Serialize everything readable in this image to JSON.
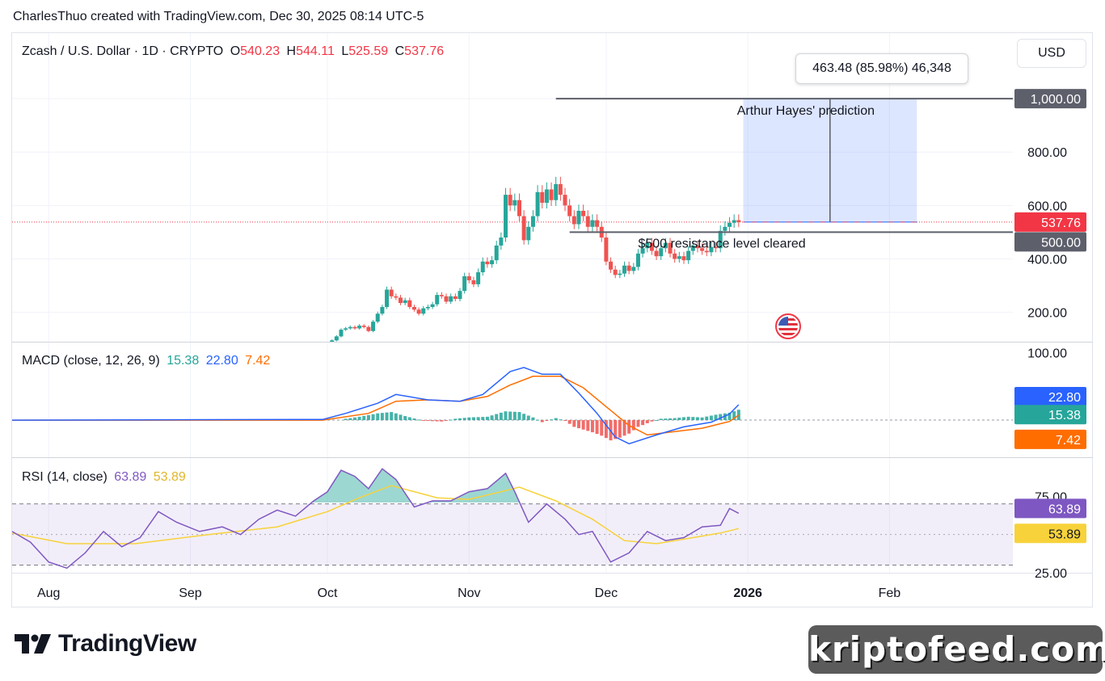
{
  "caption": "CharlesThuo created with TradingView.com, Dec 30, 2025 08:14 UTC-5",
  "symbol": {
    "title": "Zcash / U.S. Dollar · 1D · CRYPTO",
    "open_label": "O",
    "open": "540.23",
    "high_label": "H",
    "high": "544.11",
    "low_label": "L",
    "low": "525.59",
    "close_label": "C",
    "close": "537.76"
  },
  "currency_button": "USD",
  "macd_legend": {
    "title": "MACD (close, 12, 26, 9)",
    "histogram": "15.38",
    "macd": "22.80",
    "signal": "7.42"
  },
  "rsi_legend": {
    "title": "RSI (14, close)",
    "rsi": "63.89",
    "ma": "53.89"
  },
  "annotations": {
    "measure": "463.48 (85.98%) 46,348",
    "prediction": "Arthur Hayes' prediction",
    "resistance": "$500 resistance level cleared"
  },
  "branding": {
    "logo_text": "TradingView",
    "watermark": "kriptofeed.com"
  },
  "colors": {
    "up": "#26a69a",
    "down": "#ef5350",
    "macd_line": "#2962ff",
    "signal_line": "#ff6d00",
    "rsi_line": "#7e57c2",
    "rsi_ma": "#f7d23a",
    "price_tag": "#f23645",
    "level_tag": "#5d606b"
  },
  "chart_data": [
    {
      "type": "candlestick",
      "title": "Zcash / U.S. Dollar · 1D · CRYPTO",
      "ylim": [
        90,
        1100
      ],
      "yticks": [
        200,
        400,
        600,
        800
      ],
      "x_ticks": [
        "Aug",
        "Sep",
        "Oct",
        "Nov",
        "Dec",
        "2026",
        "Feb"
      ],
      "x_tick_dates": [
        "2025-08-01",
        "2025-09-01",
        "2025-10-01",
        "2025-11-01",
        "2025-12-01",
        "2026-01-01",
        "2026-02-01"
      ],
      "date_range": [
        "2025-07-24",
        "2026-02-28"
      ],
      "last_price": 537.76,
      "last_price_label": "537.76",
      "levels": [
        {
          "value": 1000,
          "label": "1,000.00",
          "from": "2025-11-20",
          "to": "2026-02-28"
        },
        {
          "value": 500,
          "label": "500.00",
          "from": "2025-11-23",
          "to": "2026-02-28"
        }
      ],
      "price_range_measure": {
        "from": 537.76,
        "to": 1000,
        "start": "2025-12-31",
        "end": "2026-02-07",
        "label": "463.48 (85.98%) 46,348"
      },
      "closes": [
        [
          "2025-10-01",
          80
        ],
        [
          "2025-10-02",
          95
        ],
        [
          "2025-10-03",
          110
        ],
        [
          "2025-10-04",
          135
        ],
        [
          "2025-10-05",
          140
        ],
        [
          "2025-10-06",
          145
        ],
        [
          "2025-10-07",
          140
        ],
        [
          "2025-10-08",
          150
        ],
        [
          "2025-10-09",
          145
        ],
        [
          "2025-10-10",
          130
        ],
        [
          "2025-10-11",
          165
        ],
        [
          "2025-10-12",
          195
        ],
        [
          "2025-10-13",
          220
        ],
        [
          "2025-10-14",
          285
        ],
        [
          "2025-10-15",
          260
        ],
        [
          "2025-10-16",
          255
        ],
        [
          "2025-10-17",
          235
        ],
        [
          "2025-10-18",
          245
        ],
        [
          "2025-10-19",
          220
        ],
        [
          "2025-10-20",
          210
        ],
        [
          "2025-10-21",
          195
        ],
        [
          "2025-10-22",
          215
        ],
        [
          "2025-10-23",
          220
        ],
        [
          "2025-10-24",
          230
        ],
        [
          "2025-10-25",
          265
        ],
        [
          "2025-10-26",
          260
        ],
        [
          "2025-10-27",
          240
        ],
        [
          "2025-10-28",
          260
        ],
        [
          "2025-10-29",
          250
        ],
        [
          "2025-10-30",
          280
        ],
        [
          "2025-10-31",
          335
        ],
        [
          "2025-11-01",
          320
        ],
        [
          "2025-11-02",
          305
        ],
        [
          "2025-11-03",
          350
        ],
        [
          "2025-11-04",
          390
        ],
        [
          "2025-11-05",
          380
        ],
        [
          "2025-11-06",
          395
        ],
        [
          "2025-11-07",
          450
        ],
        [
          "2025-11-08",
          480
        ],
        [
          "2025-11-09",
          640
        ],
        [
          "2025-11-10",
          600
        ],
        [
          "2025-11-11",
          620
        ],
        [
          "2025-11-12",
          560
        ],
        [
          "2025-11-13",
          470
        ],
        [
          "2025-11-14",
          520
        ],
        [
          "2025-11-15",
          560
        ],
        [
          "2025-11-16",
          650
        ],
        [
          "2025-11-17",
          610
        ],
        [
          "2025-11-18",
          660
        ],
        [
          "2025-11-19",
          620
        ],
        [
          "2025-11-20",
          680
        ],
        [
          "2025-11-21",
          640
        ],
        [
          "2025-11-22",
          600
        ],
        [
          "2025-11-23",
          560
        ],
        [
          "2025-11-24",
          530
        ],
        [
          "2025-11-25",
          580
        ],
        [
          "2025-11-26",
          560
        ],
        [
          "2025-11-27",
          520
        ],
        [
          "2025-11-28",
          545
        ],
        [
          "2025-11-29",
          520
        ],
        [
          "2025-11-30",
          480
        ],
        [
          "2025-12-01",
          390
        ],
        [
          "2025-12-02",
          360
        ],
        [
          "2025-12-03",
          340
        ],
        [
          "2025-12-04",
          345
        ],
        [
          "2025-12-05",
          375
        ],
        [
          "2025-12-06",
          355
        ],
        [
          "2025-12-07",
          370
        ],
        [
          "2025-12-08",
          420
        ],
        [
          "2025-12-09",
          440
        ],
        [
          "2025-12-10",
          460
        ],
        [
          "2025-12-11",
          430
        ],
        [
          "2025-12-12",
          410
        ],
        [
          "2025-12-13",
          440
        ],
        [
          "2025-12-14",
          460
        ],
        [
          "2025-12-15",
          420
        ],
        [
          "2025-12-16",
          400
        ],
        [
          "2025-12-17",
          410
        ],
        [
          "2025-12-18",
          395
        ],
        [
          "2025-12-19",
          430
        ],
        [
          "2025-12-20",
          450
        ],
        [
          "2025-12-21",
          440
        ],
        [
          "2025-12-22",
          430
        ],
        [
          "2025-12-23",
          425
        ],
        [
          "2025-12-24",
          445
        ],
        [
          "2025-12-25",
          440
        ],
        [
          "2025-12-26",
          505
        ],
        [
          "2025-12-27",
          520
        ],
        [
          "2025-12-28",
          535
        ],
        [
          "2025-12-29",
          545
        ],
        [
          "2025-12-30",
          537.76
        ]
      ]
    },
    {
      "type": "line",
      "title": "MACD (close, 12, 26, 9)",
      "ylim": [
        -55,
        115
      ],
      "yticks": [
        100
      ],
      "series": [
        {
          "name": "MACD",
          "color": "#2962ff",
          "points": [
            [
              "2025-07-24",
              0
            ],
            [
              "2025-09-30",
              1
            ],
            [
              "2025-10-05",
              10
            ],
            [
              "2025-10-12",
              25
            ],
            [
              "2025-10-16",
              38
            ],
            [
              "2025-10-23",
              30
            ],
            [
              "2025-10-30",
              28
            ],
            [
              "2025-11-04",
              38
            ],
            [
              "2025-11-10",
              72
            ],
            [
              "2025-11-13",
              78
            ],
            [
              "2025-11-17",
              68
            ],
            [
              "2025-11-21",
              68
            ],
            [
              "2025-11-25",
              40
            ],
            [
              "2025-11-29",
              10
            ],
            [
              "2025-12-03",
              -25
            ],
            [
              "2025-12-06",
              -35
            ],
            [
              "2025-12-12",
              -22
            ],
            [
              "2025-12-18",
              -10
            ],
            [
              "2025-12-24",
              -3
            ],
            [
              "2025-12-28",
              9
            ],
            [
              "2025-12-30",
              22.8
            ]
          ]
        },
        {
          "name": "Signal",
          "color": "#ff6d00",
          "points": [
            [
              "2025-07-24",
              0
            ],
            [
              "2025-09-30",
              0
            ],
            [
              "2025-10-10",
              10
            ],
            [
              "2025-10-16",
              28
            ],
            [
              "2025-10-23",
              30
            ],
            [
              "2025-10-30",
              28
            ],
            [
              "2025-11-05",
              35
            ],
            [
              "2025-11-10",
              52
            ],
            [
              "2025-11-15",
              65
            ],
            [
              "2025-11-21",
              65
            ],
            [
              "2025-11-26",
              48
            ],
            [
              "2025-12-01",
              20
            ],
            [
              "2025-12-06",
              -8
            ],
            [
              "2025-12-10",
              -22
            ],
            [
              "2025-12-16",
              -17
            ],
            [
              "2025-12-22",
              -12
            ],
            [
              "2025-12-28",
              -2
            ],
            [
              "2025-12-30",
              7.42
            ]
          ]
        }
      ],
      "histogram": {
        "name": "Histogram",
        "last": 15.38,
        "points": [
          [
            "2025-10-05",
            2
          ],
          [
            "2025-10-08",
            5
          ],
          [
            "2025-10-12",
            10
          ],
          [
            "2025-10-15",
            12
          ],
          [
            "2025-10-18",
            6
          ],
          [
            "2025-10-22",
            -1
          ],
          [
            "2025-10-26",
            -2
          ],
          [
            "2025-10-29",
            2
          ],
          [
            "2025-11-01",
            4
          ],
          [
            "2025-11-05",
            5
          ],
          [
            "2025-11-09",
            13
          ],
          [
            "2025-11-12",
            12
          ],
          [
            "2025-11-15",
            4
          ],
          [
            "2025-11-17",
            -3
          ],
          [
            "2025-11-20",
            3
          ],
          [
            "2025-11-22",
            -1
          ],
          [
            "2025-11-24",
            -10
          ],
          [
            "2025-11-26",
            -14
          ],
          [
            "2025-11-28",
            -18
          ],
          [
            "2025-11-30",
            -23
          ],
          [
            "2025-12-02",
            -30
          ],
          [
            "2025-12-04",
            -26
          ],
          [
            "2025-12-06",
            -20
          ],
          [
            "2025-12-08",
            -10
          ],
          [
            "2025-12-11",
            -2
          ],
          [
            "2025-12-13",
            2
          ],
          [
            "2025-12-16",
            3
          ],
          [
            "2025-12-19",
            5
          ],
          [
            "2025-12-22",
            4
          ],
          [
            "2025-12-25",
            8
          ],
          [
            "2025-12-28",
            11
          ],
          [
            "2025-12-30",
            15.38
          ]
        ]
      }
    },
    {
      "type": "line",
      "title": "RSI (14, close)",
      "ylim": [
        25,
        100
      ],
      "yticks": [
        75,
        25
      ],
      "bands": [
        70,
        30
      ],
      "midline": 50,
      "series": [
        {
          "name": "RSI",
          "color": "#7e57c2",
          "points": [
            [
              "2025-07-24",
              52
            ],
            [
              "2025-07-28",
              45
            ],
            [
              "2025-08-01",
              32
            ],
            [
              "2025-08-05",
              28
            ],
            [
              "2025-08-09",
              38
            ],
            [
              "2025-08-13",
              52
            ],
            [
              "2025-08-17",
              42
            ],
            [
              "2025-08-21",
              48
            ],
            [
              "2025-08-25",
              65
            ],
            [
              "2025-08-29",
              58
            ],
            [
              "2025-09-03",
              52
            ],
            [
              "2025-09-08",
              55
            ],
            [
              "2025-09-12",
              50
            ],
            [
              "2025-09-16",
              60
            ],
            [
              "2025-09-20",
              66
            ],
            [
              "2025-09-24",
              62
            ],
            [
              "2025-09-28",
              72
            ],
            [
              "2025-10-01",
              78
            ],
            [
              "2025-10-04",
              92
            ],
            [
              "2025-10-07",
              88
            ],
            [
              "2025-10-10",
              80
            ],
            [
              "2025-10-13",
              93
            ],
            [
              "2025-10-16",
              86
            ],
            [
              "2025-10-20",
              68
            ],
            [
              "2025-10-24",
              72
            ],
            [
              "2025-10-28",
              72
            ],
            [
              "2025-11-01",
              78
            ],
            [
              "2025-11-05",
              80
            ],
            [
              "2025-11-09",
              90
            ],
            [
              "2025-11-11",
              78
            ],
            [
              "2025-11-14",
              58
            ],
            [
              "2025-11-18",
              70
            ],
            [
              "2025-11-22",
              60
            ],
            [
              "2025-11-25",
              50
            ],
            [
              "2025-11-28",
              52
            ],
            [
              "2025-12-02",
              32
            ],
            [
              "2025-12-06",
              38
            ],
            [
              "2025-12-10",
              52
            ],
            [
              "2025-12-14",
              46
            ],
            [
              "2025-12-18",
              48
            ],
            [
              "2025-12-22",
              55
            ],
            [
              "2025-12-26",
              56
            ],
            [
              "2025-12-28",
              67
            ],
            [
              "2025-12-30",
              63.89
            ]
          ]
        },
        {
          "name": "RSI-based MA",
          "color": "#f7d23a",
          "points": [
            [
              "2025-07-24",
              51
            ],
            [
              "2025-08-05",
              44
            ],
            [
              "2025-08-20",
              44
            ],
            [
              "2025-09-05",
              50
            ],
            [
              "2025-09-20",
              55
            ],
            [
              "2025-10-01",
              65
            ],
            [
              "2025-10-08",
              74
            ],
            [
              "2025-10-15",
              82
            ],
            [
              "2025-10-25",
              74
            ],
            [
              "2025-11-01",
              73
            ],
            [
              "2025-11-08",
              78
            ],
            [
              "2025-11-12",
              81
            ],
            [
              "2025-11-20",
              72
            ],
            [
              "2025-11-28",
              60
            ],
            [
              "2025-12-05",
              46
            ],
            [
              "2025-12-12",
              44
            ],
            [
              "2025-12-20",
              48
            ],
            [
              "2025-12-26",
              51
            ],
            [
              "2025-12-30",
              53.89
            ]
          ]
        }
      ]
    }
  ]
}
